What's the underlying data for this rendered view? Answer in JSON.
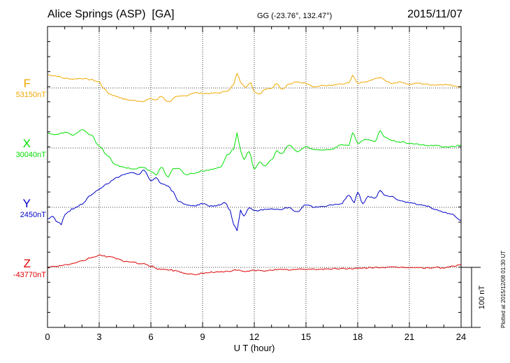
{
  "header": {
    "station": "Alice Springs (ASP)  [GA]",
    "coords": "GG (-23.76°, 132.47°)",
    "date": "2015/11/07"
  },
  "plotted": "Plotted at 2015/12/08 01:30 UT",
  "chart_data": {
    "type": "line",
    "xlabel": "U T (hour)",
    "xlim": [
      0,
      24
    ],
    "xticks": [
      "0",
      "3",
      "6",
      "9",
      "12",
      "15",
      "18",
      "21",
      "24"
    ],
    "scale_bar": "100 nT",
    "grid": true,
    "series": [
      {
        "name": "F",
        "baseline": "53150nT",
        "color": "#f0a800",
        "x": [
          0,
          0.5,
          1,
          1.5,
          2,
          2.5,
          3,
          3.3,
          3.6,
          4,
          4.5,
          5,
          5.5,
          6,
          6.3,
          6.6,
          7,
          7.5,
          8,
          8.5,
          9,
          9.5,
          10,
          10.5,
          10.8,
          11,
          11.2,
          11.5,
          11.8,
          12,
          12.3,
          12.6,
          13,
          13.3,
          13.6,
          14,
          14.5,
          15,
          15.5,
          16,
          16.5,
          17,
          17.5,
          17.7,
          18,
          18.5,
          19,
          19.3,
          19.6,
          20,
          20.5,
          21,
          21.5,
          22,
          22.5,
          23,
          23.5,
          24
        ],
        "y": [
          22,
          20,
          16,
          15,
          16,
          14,
          10,
          -2,
          -10,
          -14,
          -19,
          -21,
          -22,
          -18,
          -20,
          -14,
          -23,
          -15,
          -13,
          -8,
          -9,
          -9,
          -8,
          -4,
          5,
          25,
          10,
          2,
          8,
          -6,
          -10,
          -2,
          0,
          8,
          -2,
          6,
          10,
          8,
          2,
          4,
          4,
          6,
          8,
          20,
          8,
          10,
          15,
          18,
          12,
          8,
          10,
          6,
          8,
          6,
          5,
          6,
          4,
          2
        ]
      },
      {
        "name": "X",
        "baseline": "30040nT",
        "color": "#00e000",
        "x": [
          0,
          0.5,
          1,
          1.5,
          2,
          2.5,
          3,
          3.5,
          4,
          4.5,
          5,
          5.5,
          6,
          6.3,
          6.6,
          7,
          7.3,
          7.6,
          8,
          8.5,
          9,
          9.5,
          10,
          10.5,
          10.8,
          11,
          11.2,
          11.4,
          11.7,
          12,
          12.3,
          12.6,
          13,
          13.3,
          13.6,
          14,
          14.5,
          15,
          15.5,
          16,
          16.5,
          17,
          17.5,
          17.7,
          18,
          18.5,
          19,
          19.3,
          19.6,
          20,
          20.5,
          21,
          21.5,
          22,
          22.5,
          23,
          23.5,
          24
        ],
        "y": [
          25,
          22,
          26,
          22,
          30,
          22,
          4,
          -14,
          -29,
          -33,
          -35,
          -32,
          -38,
          -45,
          -32,
          -48,
          -35,
          -33,
          -44,
          -42,
          -38,
          -36,
          -32,
          -10,
          -2,
          25,
          -5,
          -20,
          -5,
          -35,
          -24,
          -30,
          -20,
          -5,
          -10,
          5,
          -6,
          2,
          -3,
          -3,
          -2,
          5,
          5,
          25,
          8,
          15,
          10,
          28,
          18,
          12,
          10,
          8,
          6,
          4,
          4,
          2,
          2,
          5
        ]
      },
      {
        "name": "Y",
        "baseline": "2450nT",
        "color": "#0000cc",
        "x": [
          0,
          0.3,
          0.6,
          0.8,
          1,
          1.5,
          2,
          2.5,
          3,
          3.5,
          4,
          4.5,
          5,
          5.3,
          5.6,
          6,
          6.3,
          6.6,
          7,
          7.3,
          7.6,
          8,
          8.5,
          9,
          9.5,
          10,
          10.3,
          10.6,
          10.8,
          11,
          11.2,
          11.4,
          11.7,
          12,
          12.5,
          13,
          13.5,
          14,
          14.5,
          15,
          15.5,
          16,
          16.5,
          17,
          17.5,
          17.8,
          18,
          18.3,
          18.6,
          19,
          19.3,
          19.6,
          20,
          20.5,
          21,
          21.5,
          22,
          22.5,
          23,
          23.5,
          24
        ],
        "y": [
          -20,
          -15,
          -25,
          -28,
          -12,
          -2,
          5,
          20,
          30,
          40,
          50,
          55,
          58,
          55,
          62,
          45,
          50,
          40,
          35,
          25,
          10,
          5,
          2,
          6,
          2,
          4,
          8,
          -5,
          -28,
          -38,
          -5,
          -15,
          0,
          -6,
          -4,
          -2,
          -4,
          0,
          -8,
          4,
          0,
          2,
          4,
          5,
          20,
          8,
          25,
          5,
          18,
          15,
          28,
          20,
          18,
          10,
          8,
          5,
          2,
          -4,
          -8,
          -12,
          -22
        ]
      },
      {
        "name": "Z",
        "baseline": "-43770nT",
        "color": "#e00000",
        "x": [
          0,
          0.5,
          1,
          1.5,
          2,
          2.5,
          3,
          3.5,
          4,
          4.5,
          5,
          5.5,
          6,
          6.5,
          7,
          7.5,
          8,
          8.5,
          9,
          9.5,
          10,
          10.5,
          11,
          11.5,
          12,
          12.5,
          13,
          14,
          15,
          16,
          17,
          18,
          19,
          20,
          21,
          22,
          22.5,
          23,
          23.5,
          24
        ],
        "y": [
          0,
          2,
          4,
          6,
          10,
          16,
          20,
          18,
          15,
          10,
          8,
          6,
          2,
          -3,
          -4,
          -6,
          -10,
          -12,
          -10,
          -8,
          -8,
          -6,
          -5,
          -7,
          -5,
          -6,
          -4,
          -4,
          -3,
          -3,
          -2,
          -2,
          0,
          0,
          0,
          -1,
          0,
          -1,
          2,
          4
        ]
      }
    ]
  }
}
